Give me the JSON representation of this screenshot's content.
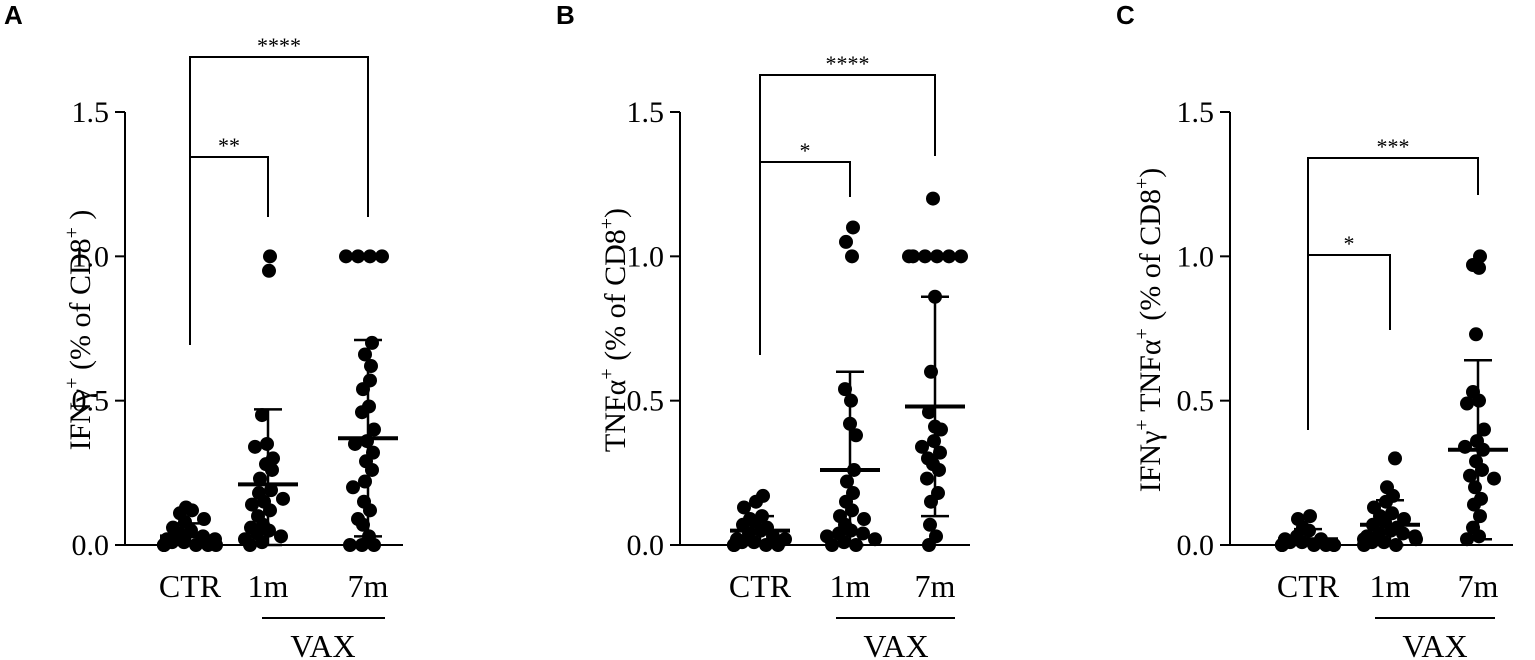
{
  "chart_data": [
    {
      "type": "scatter",
      "panel": "A",
      "ylabel": "IFNγ+ (% of CD8+ )",
      "ylabel_parts": [
        "IFNγ",
        "+",
        " (% of CD8",
        "+",
        " )"
      ],
      "categories": [
        "CTR",
        "1m",
        "7m"
      ],
      "group_label": "VAX",
      "ylim": [
        0,
        1.5
      ],
      "yticks": [
        "0.0",
        "0.5",
        "1.0",
        "1.5"
      ],
      "series": [
        {
          "category": "CTR",
          "mean": 0.03,
          "sd": 0.045,
          "values": [
            0.13,
            0.12,
            0.11,
            0.09,
            0.08,
            0.06,
            0.05,
            0.04,
            0.03,
            0.02,
            0.02,
            0.01,
            0.01,
            0.0,
            0.0,
            0.0,
            0.0,
            0.0,
            0.0
          ]
        },
        {
          "category": "1m",
          "mean": 0.21,
          "sd": 0.26,
          "values": [
            1.0,
            0.95,
            0.45,
            0.35,
            0.34,
            0.3,
            0.28,
            0.26,
            0.23,
            0.19,
            0.18,
            0.16,
            0.15,
            0.14,
            0.12,
            0.1,
            0.07,
            0.06,
            0.05,
            0.04,
            0.03,
            0.02,
            0.01,
            0.0
          ]
        },
        {
          "category": "7m",
          "mean": 0.37,
          "sd": 0.34,
          "values": [
            1.0,
            1.0,
            1.0,
            1.0,
            0.7,
            0.66,
            0.62,
            0.57,
            0.54,
            0.48,
            0.46,
            0.4,
            0.36,
            0.35,
            0.32,
            0.29,
            0.26,
            0.22,
            0.2,
            0.15,
            0.12,
            0.09,
            0.07,
            0.03,
            0.0,
            0.0,
            0.0
          ]
        }
      ],
      "comparisons": [
        {
          "from": "CTR",
          "to": "1m",
          "label": "**"
        },
        {
          "from": "CTR",
          "to": "7m",
          "label": "****"
        }
      ]
    },
    {
      "type": "scatter",
      "panel": "B",
      "ylabel": "TNFα+ (% of CD8+)",
      "ylabel_parts": [
        "TNFα",
        "+",
        " (% of CD8",
        "+",
        ")"
      ],
      "categories": [
        "CTR",
        "1m",
        "7m"
      ],
      "group_label": "VAX",
      "ylim": [
        0,
        1.5
      ],
      "yticks": [
        "0.0",
        "0.5",
        "1.0",
        "1.5"
      ],
      "series": [
        {
          "category": "CTR",
          "mean": 0.05,
          "sd": 0.05,
          "values": [
            0.17,
            0.15,
            0.13,
            0.1,
            0.09,
            0.08,
            0.07,
            0.06,
            0.05,
            0.04,
            0.03,
            0.02,
            0.02,
            0.01,
            0.01,
            0.0,
            0.0,
            0.0,
            0.0
          ]
        },
        {
          "category": "1m",
          "mean": 0.26,
          "sd": 0.34,
          "values": [
            1.1,
            1.05,
            1.0,
            0.54,
            0.5,
            0.42,
            0.38,
            0.26,
            0.22,
            0.18,
            0.15,
            0.12,
            0.1,
            0.09,
            0.07,
            0.05,
            0.04,
            0.04,
            0.03,
            0.02,
            0.01,
            0.0,
            0.0
          ]
        },
        {
          "category": "7m",
          "mean": 0.48,
          "sd": 0.38,
          "values": [
            1.2,
            1.0,
            1.0,
            1.0,
            1.0,
            1.0,
            1.0,
            0.86,
            0.6,
            0.46,
            0.41,
            0.4,
            0.36,
            0.34,
            0.32,
            0.3,
            0.28,
            0.26,
            0.23,
            0.18,
            0.15,
            0.07,
            0.03,
            0.0
          ]
        }
      ],
      "comparisons": [
        {
          "from": "CTR",
          "to": "1m",
          "label": "*"
        },
        {
          "from": "CTR",
          "to": "7m",
          "label": "****"
        }
      ]
    },
    {
      "type": "scatter",
      "panel": "C",
      "ylabel": "IFNγ+ TNFα+ (% of CD8+)",
      "ylabel_parts": [
        "IFNγ",
        "+",
        " TNFα",
        "+",
        " (% of CD8",
        "+",
        ")"
      ],
      "categories": [
        "CTR",
        "1m",
        "7m"
      ],
      "group_label": "VAX",
      "ylim": [
        0,
        1.5
      ],
      "yticks": [
        "0.0",
        "0.5",
        "1.0",
        "1.5"
      ],
      "series": [
        {
          "category": "CTR",
          "mean": 0.02,
          "sd": 0.035,
          "values": [
            0.1,
            0.09,
            0.06,
            0.05,
            0.03,
            0.02,
            0.02,
            0.01,
            0.01,
            0.0,
            0.0,
            0.0,
            0.0,
            0.0,
            0.0,
            0.0
          ]
        },
        {
          "category": "1m",
          "mean": 0.07,
          "sd": 0.085,
          "values": [
            0.3,
            0.2,
            0.17,
            0.15,
            0.13,
            0.11,
            0.1,
            0.09,
            0.08,
            0.07,
            0.06,
            0.05,
            0.04,
            0.04,
            0.03,
            0.03,
            0.02,
            0.02,
            0.01,
            0.01,
            0.0,
            0.0
          ]
        },
        {
          "category": "7m",
          "mean": 0.33,
          "sd": 0.31,
          "values": [
            1.0,
            0.97,
            0.96,
            0.73,
            0.53,
            0.5,
            0.49,
            0.4,
            0.36,
            0.34,
            0.33,
            0.29,
            0.26,
            0.24,
            0.23,
            0.2,
            0.16,
            0.14,
            0.1,
            0.06,
            0.03,
            0.02
          ]
        }
      ],
      "comparisons": [
        {
          "from": "CTR",
          "to": "1m",
          "label": "*"
        },
        {
          "from": "CTR",
          "to": "7m",
          "label": "***"
        }
      ]
    }
  ]
}
